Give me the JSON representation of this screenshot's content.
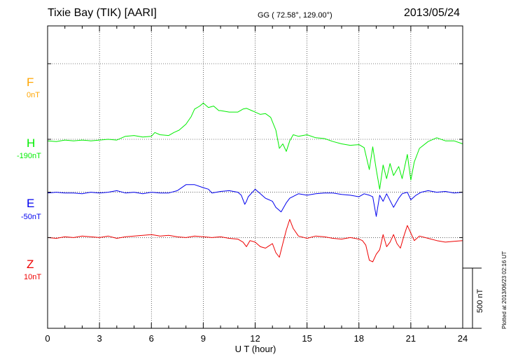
{
  "header": {
    "station": "Tixie Bay (TIK)  [AARI]",
    "coords": "GG ( 72.58°, 129.00°)",
    "date": "2013/05/24"
  },
  "components": [
    {
      "name": "F",
      "offset": "0nT",
      "color": "#ffa500"
    },
    {
      "name": "H",
      "offset": "-190nT",
      "color": "#00ee00"
    },
    {
      "name": "E",
      "offset": "-50nT",
      "color": "#0000ee"
    },
    {
      "name": "Z",
      "offset": "10nT",
      "color": "#ee0000"
    }
  ],
  "x_axis": {
    "label": "U T (hour)",
    "ticks": [
      "0",
      "3",
      "6",
      "9",
      "12",
      "15",
      "18",
      "21",
      "24"
    ]
  },
  "scale_bar": "500 nT",
  "footer": "Plotted at 2013/06/23 02:16 UT",
  "chart_data": {
    "type": "line",
    "title": "Tixie Bay (TIK)  [AARI]",
    "xlabel": "U T (hour)",
    "ylabel": "",
    "xlim": [
      0,
      24
    ],
    "ylim_nT": [
      -750,
      1250
    ],
    "scale_nT": 500,
    "grid": true,
    "series": [
      {
        "name": "H",
        "color": "#00ee00",
        "baseline_nT": 500,
        "points": [
          [
            0,
            -10
          ],
          [
            0.5,
            -15
          ],
          [
            1,
            -5
          ],
          [
            1.5,
            -10
          ],
          [
            2,
            -5
          ],
          [
            2.5,
            -10
          ],
          [
            3,
            -5
          ],
          [
            3.5,
            0
          ],
          [
            4,
            -5
          ],
          [
            4.5,
            20
          ],
          [
            5,
            25
          ],
          [
            5.5,
            15
          ],
          [
            6,
            20
          ],
          [
            6.2,
            45
          ],
          [
            6.5,
            30
          ],
          [
            7,
            25
          ],
          [
            7.3,
            45
          ],
          [
            7.6,
            60
          ],
          [
            8,
            100
          ],
          [
            8.3,
            150
          ],
          [
            8.5,
            200
          ],
          [
            8.8,
            220
          ],
          [
            9,
            240
          ],
          [
            9.3,
            210
          ],
          [
            9.6,
            220
          ],
          [
            9.9,
            190
          ],
          [
            10,
            190
          ],
          [
            10.5,
            180
          ],
          [
            11,
            180
          ],
          [
            11.3,
            200
          ],
          [
            11.5,
            205
          ],
          [
            11.8,
            190
          ],
          [
            12,
            180
          ],
          [
            12.3,
            165
          ],
          [
            12.6,
            170
          ],
          [
            12.9,
            145
          ],
          [
            13.2,
            60
          ],
          [
            13.4,
            -60
          ],
          [
            13.6,
            -30
          ],
          [
            13.8,
            -80
          ],
          [
            14,
            -10
          ],
          [
            14.2,
            30
          ],
          [
            14.5,
            20
          ],
          [
            15,
            30
          ],
          [
            15.5,
            10
          ],
          [
            16,
            5
          ],
          [
            16.5,
            -15
          ],
          [
            17,
            -30
          ],
          [
            17.5,
            -40
          ],
          [
            18,
            -35
          ],
          [
            18.3,
            -55
          ],
          [
            18.6,
            -200
          ],
          [
            18.8,
            -50
          ],
          [
            19,
            -200
          ],
          [
            19.2,
            -330
          ],
          [
            19.4,
            -170
          ],
          [
            19.6,
            -260
          ],
          [
            19.8,
            -160
          ],
          [
            20,
            -240
          ],
          [
            20.3,
            -180
          ],
          [
            20.5,
            -260
          ],
          [
            20.8,
            -100
          ],
          [
            21,
            -270
          ],
          [
            21.2,
            -150
          ],
          [
            21.5,
            -60
          ],
          [
            22,
            -15
          ],
          [
            22.5,
            10
          ],
          [
            23,
            -10
          ],
          [
            23.5,
            -10
          ],
          [
            24,
            -30
          ]
        ]
      },
      {
        "name": "E",
        "color": "#0000ee",
        "baseline_nT": 150,
        "points": [
          [
            0,
            -5
          ],
          [
            0.5,
            0
          ],
          [
            1,
            -5
          ],
          [
            1.5,
            -5
          ],
          [
            2,
            -10
          ],
          [
            2.5,
            0
          ],
          [
            3,
            -5
          ],
          [
            3.5,
            0
          ],
          [
            4,
            10
          ],
          [
            4.5,
            -5
          ],
          [
            5,
            0
          ],
          [
            5.5,
            -10
          ],
          [
            6,
            0
          ],
          [
            6.5,
            -5
          ],
          [
            7,
            -5
          ],
          [
            7.5,
            10
          ],
          [
            8,
            50
          ],
          [
            8.5,
            50
          ],
          [
            9,
            30
          ],
          [
            9.3,
            20
          ],
          [
            9.5,
            -5
          ],
          [
            10,
            5
          ],
          [
            10.5,
            10
          ],
          [
            11,
            0
          ],
          [
            11.2,
            -20
          ],
          [
            11.4,
            -80
          ],
          [
            11.5,
            -60
          ],
          [
            11.6,
            -30
          ],
          [
            12,
            20
          ],
          [
            12.3,
            -10
          ],
          [
            12.6,
            -40
          ],
          [
            13,
            -60
          ],
          [
            13.2,
            -100
          ],
          [
            13.3,
            -110
          ],
          [
            13.5,
            -130
          ],
          [
            13.8,
            -70
          ],
          [
            14,
            -40
          ],
          [
            14.5,
            -10
          ],
          [
            15,
            -20
          ],
          [
            15.5,
            -10
          ],
          [
            16,
            -5
          ],
          [
            16.5,
            -5
          ],
          [
            17,
            -15
          ],
          [
            17.5,
            -20
          ],
          [
            18,
            -30
          ],
          [
            18.3,
            -10
          ],
          [
            18.6,
            -20
          ],
          [
            18.8,
            -30
          ],
          [
            19,
            -160
          ],
          [
            19.2,
            -20
          ],
          [
            19.4,
            -60
          ],
          [
            19.6,
            -10
          ],
          [
            20,
            -100
          ],
          [
            20.3,
            -40
          ],
          [
            20.5,
            -10
          ],
          [
            20.8,
            0
          ],
          [
            21,
            -50
          ],
          [
            21.3,
            -20
          ],
          [
            21.6,
            0
          ],
          [
            22,
            10
          ],
          [
            22.5,
            0
          ],
          [
            23,
            5
          ],
          [
            23.5,
            -5
          ],
          [
            24,
            0
          ]
        ]
      },
      {
        "name": "Z",
        "color": "#ee0000",
        "baseline_nT": -150,
        "points": [
          [
            0,
            0
          ],
          [
            0.5,
            -5
          ],
          [
            1,
            5
          ],
          [
            1.5,
            0
          ],
          [
            2,
            10
          ],
          [
            2.5,
            5
          ],
          [
            3,
            0
          ],
          [
            3.5,
            10
          ],
          [
            4,
            -5
          ],
          [
            4.5,
            5
          ],
          [
            5,
            10
          ],
          [
            5.5,
            15
          ],
          [
            6,
            20
          ],
          [
            6.5,
            10
          ],
          [
            7,
            15
          ],
          [
            7.5,
            5
          ],
          [
            8,
            0
          ],
          [
            8.5,
            10
          ],
          [
            9,
            5
          ],
          [
            9.5,
            0
          ],
          [
            10,
            5
          ],
          [
            10.5,
            -5
          ],
          [
            11,
            -10
          ],
          [
            11.3,
            -30
          ],
          [
            11.5,
            -60
          ],
          [
            11.7,
            -20
          ],
          [
            12,
            -30
          ],
          [
            12.3,
            -60
          ],
          [
            12.6,
            -70
          ],
          [
            13,
            -40
          ],
          [
            13.2,
            -100
          ],
          [
            13.4,
            -130
          ],
          [
            13.6,
            -40
          ],
          [
            13.8,
            50
          ],
          [
            14,
            120
          ],
          [
            14.2,
            60
          ],
          [
            14.5,
            10
          ],
          [
            15,
            -5
          ],
          [
            15.5,
            10
          ],
          [
            16,
            5
          ],
          [
            16.5,
            -5
          ],
          [
            17,
            -10
          ],
          [
            17.5,
            0
          ],
          [
            18,
            -10
          ],
          [
            18.2,
            -20
          ],
          [
            18.4,
            -50
          ],
          [
            18.6,
            -150
          ],
          [
            18.8,
            -160
          ],
          [
            19,
            -110
          ],
          [
            19.2,
            -80
          ],
          [
            19.4,
            20
          ],
          [
            19.6,
            -60
          ],
          [
            19.8,
            -30
          ],
          [
            20,
            20
          ],
          [
            20.2,
            -40
          ],
          [
            20.4,
            -70
          ],
          [
            20.6,
            10
          ],
          [
            20.8,
            80
          ],
          [
            21,
            30
          ],
          [
            21.2,
            -20
          ],
          [
            21.5,
            10
          ],
          [
            22,
            -5
          ],
          [
            22.5,
            -20
          ],
          [
            23,
            -30
          ],
          [
            23.5,
            -25
          ],
          [
            24,
            -20
          ]
        ]
      }
    ]
  }
}
